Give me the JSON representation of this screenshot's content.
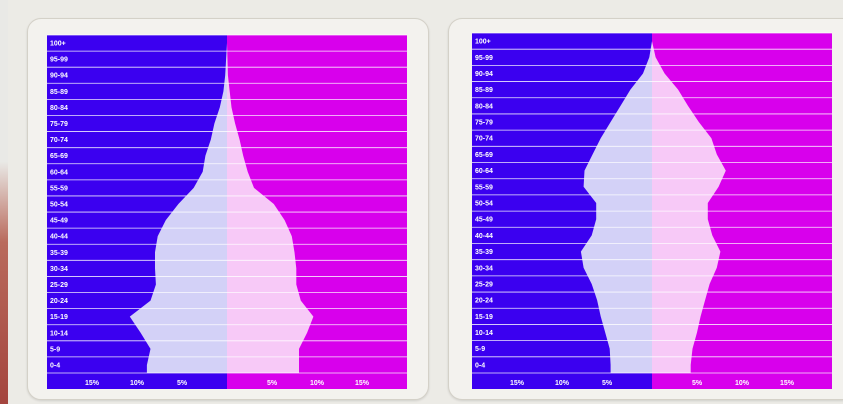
{
  "chart_data": [
    {
      "type": "population-pyramid",
      "age_groups": [
        "0-4",
        "5-9",
        "10-14",
        "15-19",
        "20-24",
        "25-29",
        "30-34",
        "35-39",
        "40-44",
        "45-49",
        "50-54",
        "55-59",
        "60-64",
        "65-69",
        "70-74",
        "75-79",
        "80-84",
        "85-89",
        "90-94",
        "95-99",
        "100+"
      ],
      "x_ticks": [
        "15%",
        "10%",
        "5%",
        "5%",
        "10%",
        "15%"
      ],
      "xlim": [
        -20,
        20
      ],
      "male_percent": [
        8.9,
        8.5,
        9.6,
        10.8,
        8.5,
        7.9,
        8.0,
        8.0,
        7.7,
        6.8,
        5.4,
        3.7,
        2.7,
        2.4,
        1.8,
        1.4,
        0.8,
        0.4,
        0.2,
        0.1,
        0.0
      ],
      "female_percent": [
        8.0,
        8.0,
        8.9,
        9.6,
        8.2,
        7.7,
        7.7,
        7.5,
        7.2,
        6.4,
        5.2,
        3.0,
        2.3,
        1.8,
        1.4,
        0.9,
        0.5,
        0.3,
        0.1,
        0.05,
        0.0
      ],
      "colors": {
        "male_band": "#3b00f0",
        "female_band": "#d800ec",
        "male_fill": "#d3d1f7",
        "female_fill": "#f7c9f7"
      }
    },
    {
      "type": "population-pyramid",
      "age_groups": [
        "0-4",
        "5-9",
        "10-14",
        "15-19",
        "20-24",
        "25-29",
        "30-34",
        "35-39",
        "40-44",
        "45-49",
        "50-54",
        "55-59",
        "60-64",
        "65-69",
        "70-74",
        "75-79",
        "80-84",
        "85-89",
        "90-94",
        "95-99",
        "100+"
      ],
      "x_ticks": [
        "15%",
        "10%",
        "5%",
        "5%",
        "10%",
        "15%"
      ],
      "xlim": [
        -20,
        20
      ],
      "male_percent": [
        4.6,
        4.7,
        5.2,
        5.7,
        6.1,
        6.7,
        7.6,
        7.9,
        6.7,
        6.2,
        6.2,
        7.6,
        7.5,
        6.6,
        5.7,
        4.6,
        3.5,
        2.4,
        1.0,
        0.3,
        0.0
      ],
      "female_percent": [
        4.3,
        4.5,
        5.0,
        5.4,
        5.9,
        6.4,
        7.2,
        7.6,
        6.7,
        6.2,
        6.2,
        7.4,
        8.2,
        7.2,
        6.6,
        5.2,
        4.0,
        2.9,
        1.4,
        0.4,
        0.0
      ],
      "colors": {
        "male_band": "#3b00f0",
        "female_band": "#d800ec",
        "male_fill": "#d3d1f7",
        "female_fill": "#f7c9f7"
      }
    }
  ]
}
